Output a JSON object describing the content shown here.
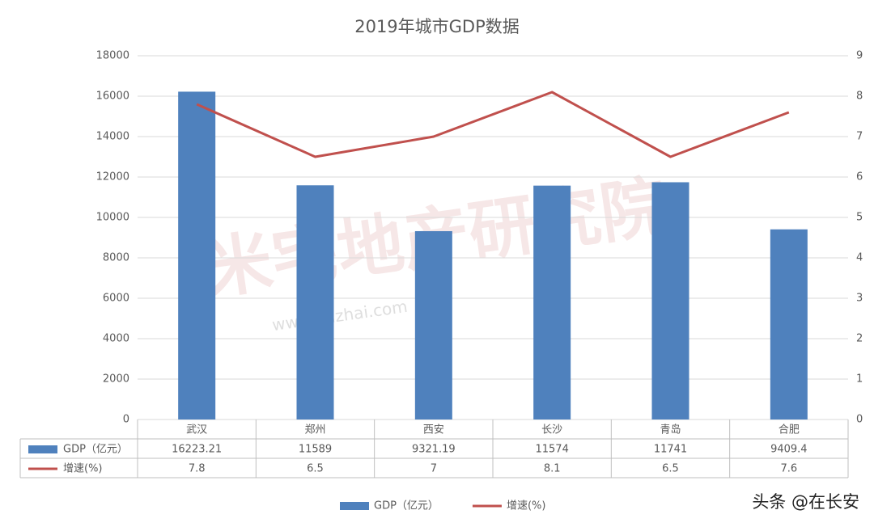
{
  "chart_data": {
    "type": "bar",
    "title": "2019年城市GDP数据",
    "categories": [
      "武汉",
      "郑州",
      "西安",
      "长沙",
      "青岛",
      "合肥"
    ],
    "series": [
      {
        "name": "GDP（亿元）",
        "color": "#4f81bd",
        "values": [
          16223.21,
          11589,
          9321.19,
          11574,
          11741,
          9409.4
        ]
      },
      {
        "name": "增速(%)",
        "color": "#c0504d",
        "type": "line",
        "axis": "y2",
        "values": [
          7.8,
          6.5,
          7,
          8.1,
          6.5,
          7.6
        ]
      }
    ],
    "ylim": [
      0,
      18000
    ],
    "yticks": [
      0,
      2000,
      4000,
      6000,
      8000,
      10000,
      12000,
      14000,
      16000,
      18000
    ],
    "y2lim": [
      0,
      9
    ],
    "y2ticks": [
      0,
      1,
      2,
      3,
      4,
      5,
      6,
      7,
      8,
      9
    ],
    "grid": true,
    "legend": "bottom",
    "data_table": true,
    "annotations": [
      "米宅地产研究院",
      "www.mizhai.com",
      "头条 @在长安"
    ]
  }
}
